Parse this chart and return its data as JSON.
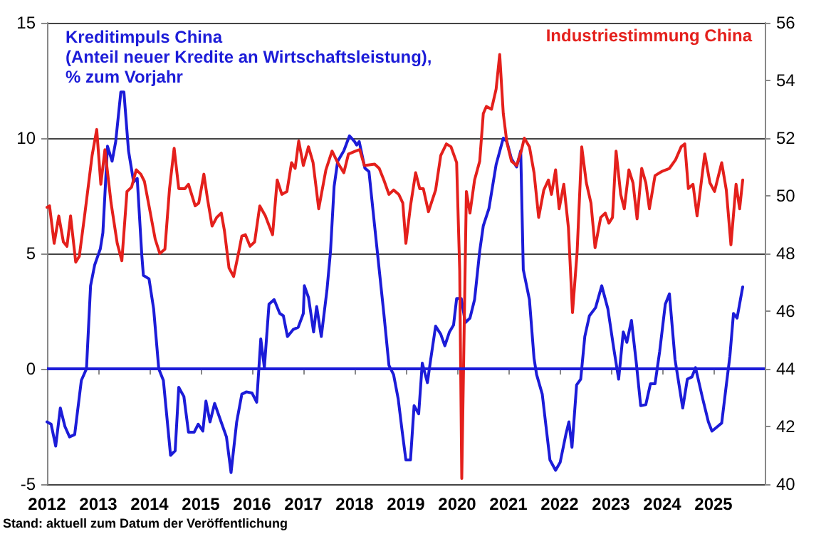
{
  "chart_data": {
    "type": "line",
    "ylabel": "Kreditimpuls China\n(Anteil neuer Kredite an Wirtschaftsleistung),\n% zum Vorjahr",
    "y2label": "Industriestimmung China",
    "annotations": [
      "Stand: aktuell zum Datum der Veröffentlichung"
    ],
    "xlim": [
      2012,
      2026
    ],
    "xticks": [
      2012,
      2013,
      2014,
      2015,
      2016,
      2017,
      2018,
      2019,
      2020,
      2021,
      2022,
      2023,
      2024,
      2025
    ],
    "ylim": [
      -5,
      15
    ],
    "yticks": [
      -5,
      0,
      5,
      10,
      15
    ],
    "y2lim": [
      40,
      56
    ],
    "y2ticks": [
      40,
      42,
      44,
      46,
      48,
      50,
      52,
      54,
      56
    ],
    "grid": "y",
    "marker": "none",
    "line_style": "solid",
    "ref_lines": [
      {
        "axis": "y",
        "value": 0,
        "color": "#1c1cd8"
      }
    ],
    "series": [
      {
        "color": "#1c1cd8",
        "x": [
          2012.0,
          2012.08,
          2012.17,
          2012.26,
          2012.35,
          2012.44,
          2012.54,
          2012.67,
          2012.77,
          2012.85,
          2012.93,
          2013.04,
          2013.09,
          2013.18,
          2013.27,
          2013.34,
          2013.44,
          2013.5,
          2013.59,
          2013.69,
          2013.76,
          2013.85,
          2013.88,
          2013.99,
          2014.08,
          2014.18,
          2014.27,
          2014.41,
          2014.5,
          2014.57,
          2014.67,
          2014.76,
          2014.87,
          2014.95,
          2015.04,
          2015.1,
          2015.18,
          2015.27,
          2015.38,
          2015.5,
          2015.59,
          2015.7,
          2015.8,
          2015.89,
          2016.0,
          2016.09,
          2016.17,
          2016.24,
          2016.33,
          2016.43,
          2016.54,
          2016.61,
          2016.69,
          2016.8,
          2016.9,
          2017.0,
          2017.02,
          2017.1,
          2017.2,
          2017.26,
          2017.35,
          2017.46,
          2017.53,
          2017.6,
          2017.67,
          2017.79,
          2017.9,
          2018.0,
          2018.04,
          2018.09,
          2018.2,
          2018.28,
          2018.39,
          2018.48,
          2018.57,
          2018.67,
          2018.76,
          2018.85,
          2018.93,
          2019.0,
          2019.09,
          2019.16,
          2019.25,
          2019.32,
          2019.42,
          2019.48,
          2019.58,
          2019.68,
          2019.76,
          2019.85,
          2019.93,
          2019.99,
          2020.08,
          2020.16,
          2020.25,
          2020.34,
          2020.44,
          2020.51,
          2020.62,
          2020.76,
          2020.9,
          2020.97,
          2021.06,
          2021.16,
          2021.24,
          2021.29,
          2021.41,
          2021.5,
          2021.55,
          2021.66,
          2021.81,
          2021.92,
          2022.01,
          2022.12,
          2022.18,
          2022.24,
          2022.33,
          2022.41,
          2022.49,
          2022.58,
          2022.7,
          2022.82,
          2022.94,
          2023.05,
          2023.15,
          2023.24,
          2023.31,
          2023.4,
          2023.49,
          2023.58,
          2023.68,
          2023.77,
          2023.86,
          2023.95,
          2024.06,
          2024.14,
          2024.25,
          2024.4,
          2024.49,
          2024.58,
          2024.65,
          2024.79,
          2024.9,
          2024.97,
          2025.08,
          2025.16,
          2025.25,
          2025.32,
          2025.39,
          2025.46,
          2025.57
        ],
        "values": [
          -2.3,
          -2.4,
          -3.35,
          -1.7,
          -2.5,
          -2.95,
          -2.85,
          -0.5,
          0,
          3.6,
          4.5,
          5.2,
          5.9,
          9.65,
          9.0,
          9.85,
          12.0,
          12.0,
          9.45,
          8.1,
          8.25,
          4.9,
          4.05,
          3.9,
          2.6,
          0,
          -0.5,
          -3.75,
          -3.55,
          -0.8,
          -1.2,
          -2.75,
          -2.75,
          -2.4,
          -2.7,
          -1.4,
          -2.3,
          -1.5,
          -2.2,
          -2.95,
          -4.5,
          -2.3,
          -1.1,
          -1.0,
          -1.05,
          -1.45,
          1.3,
          0.05,
          2.8,
          3.0,
          2.4,
          2.3,
          1.4,
          1.7,
          1.8,
          2.4,
          3.6,
          3.1,
          1.6,
          2.7,
          1.4,
          3.4,
          5.1,
          7.9,
          9.0,
          9.45,
          10.1,
          9.85,
          9.7,
          9.85,
          8.7,
          8.55,
          6.2,
          4.3,
          2.4,
          0.15,
          -0.25,
          -1.3,
          -2.75,
          -3.95,
          -3.95,
          -1.6,
          -1.95,
          0.25,
          -0.6,
          0.35,
          1.85,
          1.5,
          1.0,
          1.6,
          1.9,
          3.05,
          3.05,
          2.0,
          2.2,
          3.0,
          5.1,
          6.2,
          6.95,
          8.85,
          10.0,
          9.85,
          9.1,
          8.75,
          9.45,
          4.3,
          3.0,
          0.45,
          -0.25,
          -1.1,
          -3.95,
          -4.4,
          -4.05,
          -2.85,
          -2.3,
          -3.4,
          -0.7,
          -0.45,
          1.4,
          2.3,
          2.65,
          3.6,
          2.6,
          0.95,
          -0.45,
          1.6,
          1.15,
          2.1,
          0.35,
          -1.6,
          -1.55,
          -0.65,
          -0.65,
          0.75,
          2.8,
          3.25,
          0.4,
          -1.7,
          -0.45,
          -0.35,
          0.05,
          -1.3,
          -2.3,
          -2.7,
          -2.5,
          -2.35,
          -0.7,
          0.55,
          2.4,
          2.2,
          3.55
        ]
      },
      {
        "color": "#e4201c",
        "axis": "y2",
        "x": [
          2012.0,
          2012.05,
          2012.14,
          2012.23,
          2012.32,
          2012.39,
          2012.46,
          2012.56,
          2012.63,
          2012.74,
          2012.88,
          2012.97,
          2013.05,
          2013.13,
          2013.25,
          2013.37,
          2013.46,
          2013.56,
          2013.65,
          2013.74,
          2013.83,
          2013.9,
          2013.99,
          2014.11,
          2014.2,
          2014.3,
          2014.39,
          2014.48,
          2014.57,
          2014.69,
          2014.76,
          2014.89,
          2014.96,
          2015.06,
          2015.13,
          2015.22,
          2015.31,
          2015.4,
          2015.46,
          2015.55,
          2015.64,
          2015.74,
          2015.8,
          2015.87,
          2015.96,
          2016.05,
          2016.15,
          2016.26,
          2016.4,
          2016.49,
          2016.58,
          2016.68,
          2016.77,
          2016.84,
          2016.91,
          2017.0,
          2017.1,
          2017.19,
          2017.3,
          2017.44,
          2017.56,
          2017.67,
          2017.79,
          2017.88,
          2018.02,
          2018.1,
          2018.19,
          2018.39,
          2018.48,
          2018.57,
          2018.67,
          2018.76,
          2018.86,
          2018.94,
          2019.0,
          2019.09,
          2019.19,
          2019.27,
          2019.34,
          2019.44,
          2019.58,
          2019.68,
          2019.79,
          2019.88,
          2019.99,
          2020.05,
          2020.09,
          2020.18,
          2020.25,
          2020.34,
          2020.44,
          2020.51,
          2020.57,
          2020.67,
          2020.76,
          2020.83,
          2020.9,
          2020.97,
          2021.06,
          2021.16,
          2021.25,
          2021.31,
          2021.41,
          2021.5,
          2021.59,
          2021.69,
          2021.78,
          2021.84,
          2021.92,
          2021.99,
          2022.08,
          2022.17,
          2022.25,
          2022.34,
          2022.43,
          2022.52,
          2022.61,
          2022.69,
          2022.8,
          2022.89,
          2022.96,
          2023.03,
          2023.1,
          2023.19,
          2023.26,
          2023.35,
          2023.43,
          2023.51,
          2023.6,
          2023.68,
          2023.75,
          2023.86,
          2024.0,
          2024.14,
          2024.26,
          2024.37,
          2024.44,
          2024.51,
          2024.6,
          2024.68,
          2024.83,
          2024.93,
          2025.02,
          2025.16,
          2025.25,
          2025.34,
          2025.44,
          2025.51,
          2025.57
        ],
        "values": [
          49.6,
          49.65,
          48.35,
          49.3,
          48.4,
          48.25,
          49.3,
          47.7,
          47.9,
          49.4,
          51.4,
          52.3,
          50.4,
          51.6,
          49.75,
          48.35,
          47.75,
          50.15,
          50.3,
          50.9,
          50.75,
          50.5,
          49.65,
          48.5,
          48.0,
          48.15,
          50.25,
          51.65,
          50.25,
          50.25,
          50.4,
          49.65,
          49.75,
          50.75,
          49.9,
          48.95,
          49.25,
          49.4,
          48.8,
          47.5,
          47.2,
          48.05,
          48.6,
          48.65,
          48.25,
          48.4,
          49.65,
          49.3,
          48.65,
          50.55,
          50.05,
          50.15,
          51.15,
          50.95,
          51.9,
          51.05,
          51.7,
          51.15,
          49.55,
          50.9,
          51.55,
          51.15,
          50.8,
          51.45,
          51.55,
          51.6,
          51.05,
          51.1,
          50.95,
          50.55,
          50.05,
          50.2,
          50.05,
          49.75,
          48.35,
          49.65,
          50.8,
          50.25,
          50.25,
          49.45,
          50.2,
          51.4,
          51.8,
          51.7,
          51.15,
          47.4,
          40.2,
          50.15,
          49.4,
          50.55,
          51.2,
          52.85,
          53.1,
          53.0,
          53.7,
          54.9,
          52.85,
          51.85,
          51.2,
          51.05,
          51.55,
          52.0,
          51.7,
          50.8,
          49.25,
          50.2,
          50.55,
          50.05,
          50.9,
          49.55,
          50.4,
          48.9,
          45.95,
          48.05,
          51.7,
          50.45,
          49.75,
          48.2,
          49.25,
          49.4,
          49.05,
          49.25,
          51.55,
          50.05,
          49.55,
          50.9,
          50.45,
          49.2,
          50.95,
          50.45,
          49.55,
          50.7,
          50.85,
          50.95,
          51.25,
          51.7,
          51.8,
          50.25,
          50.4,
          49.3,
          51.45,
          50.45,
          50.15,
          51.15,
          50.2,
          48.3,
          50.4,
          49.55,
          50.55
        ]
      }
    ]
  }
}
